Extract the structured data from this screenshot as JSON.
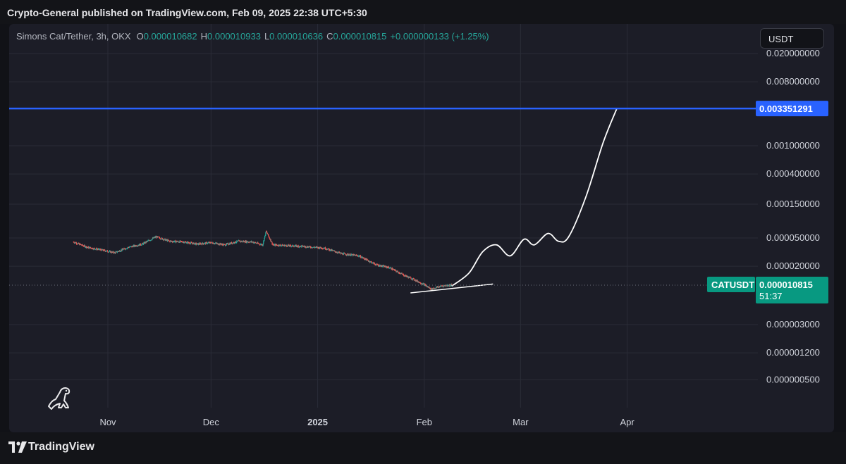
{
  "header": {
    "published_text": "Crypto-General published on TradingView.com, Feb 09, 2025 22:38 UTC+5:30"
  },
  "legend": {
    "symbol": "Simons Cat/Tether, 3h, OKX",
    "o_label": "O",
    "o_value": "0.000010682",
    "h_label": "H",
    "h_value": "0.000010933",
    "l_label": "L",
    "l_value": "0.000010636",
    "c_label": "C",
    "c_value": "0.000010815",
    "change": "+0.000000133 (+1.25%)"
  },
  "currency_button": "USDT",
  "footer": {
    "brand": "TradingView"
  },
  "colors": {
    "background": "#1c1d27",
    "up": "#26a69a",
    "down": "#ef5350",
    "resistance": "#2962ff",
    "projection": "#ffffff"
  },
  "chart_data": {
    "type": "line",
    "title": "",
    "y_scale": "log",
    "y_ticks": [
      "0.020000000",
      "0.008000000",
      "0.001000000",
      "0.000400000",
      "0.000150000",
      "0.000050000",
      "0.000020000",
      "0.000003000",
      "0.000001200",
      "0.000000500"
    ],
    "x_ticks": [
      "Nov",
      "Dec",
      "2025",
      "Feb",
      "Mar",
      "Apr"
    ],
    "grid": true,
    "series": [
      {
        "kind": "price",
        "x": [
          "2024-10-22",
          "2024-10-26",
          "2024-10-30",
          "2024-11-03",
          "2024-11-07",
          "2024-11-11",
          "2024-11-15",
          "2024-11-19",
          "2024-11-23",
          "2024-11-27",
          "2024-12-01",
          "2024-12-05",
          "2024-12-09",
          "2024-12-13",
          "2024-12-16",
          "2024-12-17",
          "2024-12-19",
          "2024-12-23",
          "2024-12-28",
          "2025-01-03",
          "2025-01-08",
          "2025-01-13",
          "2025-01-18",
          "2025-01-22",
          "2025-01-26",
          "2025-01-29",
          "2025-02-01",
          "2025-02-03",
          "2025-02-06",
          "2025-02-08",
          "2025-02-09"
        ],
        "y": [
          4.4e-05,
          3.7e-05,
          3.4e-05,
          3.1e-05,
          3.7e-05,
          4.1e-05,
          5.2e-05,
          4.5e-05,
          4.4e-05,
          4.1e-05,
          4.3e-05,
          4e-05,
          4.5e-05,
          4.4e-05,
          4e-05,
          6.2e-05,
          4e-05,
          3.9e-05,
          3.8e-05,
          3.6e-05,
          3e-05,
          2.8e-05,
          2.1e-05,
          1.9e-05,
          1.5e-05,
          1.3e-05,
          1.1e-05,
          9.5e-06,
          1.05e-05,
          1.08e-05,
          1.0815e-05
        ]
      },
      {
        "kind": "projection",
        "x": [
          "2025-02-09",
          "2025-02-14",
          "2025-02-18",
          "2025-02-22",
          "2025-02-26",
          "2025-03-02",
          "2025-03-05",
          "2025-03-09",
          "2025-03-12",
          "2025-03-15",
          "2025-03-20",
          "2025-03-25",
          "2025-03-29"
        ],
        "y": [
          1.05e-05,
          1.6e-05,
          3.2e-05,
          4e-05,
          2.8e-05,
          4.8e-05,
          4e-05,
          5.8e-05,
          4.5e-05,
          5.2e-05,
          0.00019,
          0.0011,
          0.003351291
        ]
      },
      {
        "kind": "support",
        "x": [
          "2025-01-28",
          "2025-02-21"
        ],
        "y": [
          8.4e-06,
          1.12e-05
        ]
      }
    ],
    "resistance_level": 0.003351291,
    "resistance_label": "0.003351291",
    "last_price_symbol": "CATUSDT",
    "last_price_label": "0.000010815",
    "countdown": "51:37"
  }
}
